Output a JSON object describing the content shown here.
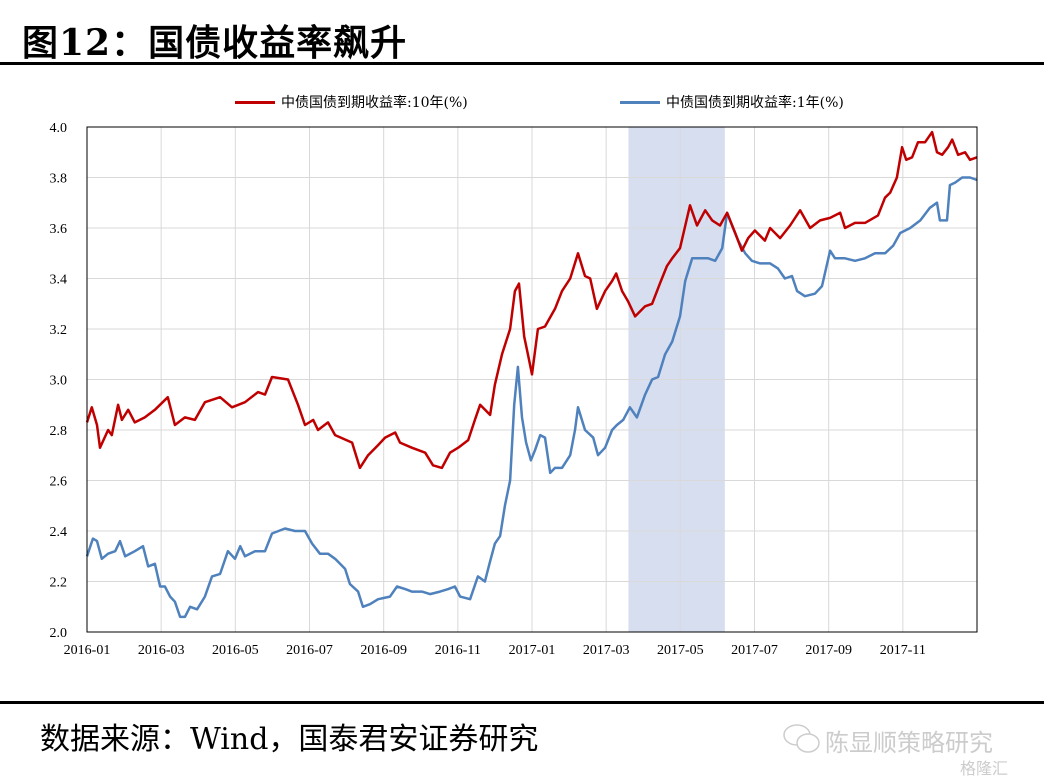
{
  "title": "图12：国债收益率飙升",
  "source": "数据来源：Wind，国泰君安证券研究",
  "watermark": {
    "account": "陈显顺策略研究",
    "platform": "格隆汇"
  },
  "colors": {
    "ten_year": "#C00000",
    "one_year": "#4F81BD",
    "shade": "#D6DEF0"
  },
  "chart_data": {
    "type": "line",
    "title": "图12：国债收益率飙升",
    "xlabel": "",
    "ylabel": "",
    "x_unit": "months since 2016-01",
    "xlim": [
      0,
      24
    ],
    "ylim": [
      2.0,
      4.0
    ],
    "yticks": [
      "2.0",
      "2.2",
      "2.4",
      "2.6",
      "2.8",
      "3.0",
      "3.2",
      "3.4",
      "3.6",
      "3.8",
      "4.0"
    ],
    "xticks": [
      "2016-01",
      "2016-03",
      "2016-05",
      "2016-07",
      "2016-09",
      "2016-11",
      "2017-01",
      "2017-03",
      "2017-05",
      "2017-07",
      "2017-09",
      "2017-11"
    ],
    "grid": true,
    "legend_position": "top",
    "shaded_range": [
      14.6,
      17.2
    ],
    "series": [
      {
        "name": "中债国债到期收益率:10年(%)",
        "points": [
          [
            0,
            2.83
          ],
          [
            0.13,
            2.89
          ],
          [
            0.27,
            2.82
          ],
          [
            0.35,
            2.73
          ],
          [
            0.57,
            2.8
          ],
          [
            0.67,
            2.78
          ],
          [
            0.84,
            2.9
          ],
          [
            0.94,
            2.84
          ],
          [
            1.11,
            2.88
          ],
          [
            1.29,
            2.83
          ],
          [
            1.56,
            2.85
          ],
          [
            1.83,
            2.88
          ],
          [
            2.18,
            2.93
          ],
          [
            2.37,
            2.82
          ],
          [
            2.64,
            2.85
          ],
          [
            2.91,
            2.84
          ],
          [
            3.18,
            2.91
          ],
          [
            3.59,
            2.93
          ],
          [
            3.91,
            2.89
          ],
          [
            4.26,
            2.91
          ],
          [
            4.61,
            2.95
          ],
          [
            4.8,
            2.94
          ],
          [
            4.99,
            3.01
          ],
          [
            5.42,
            3.0
          ],
          [
            5.69,
            2.9
          ],
          [
            5.88,
            2.82
          ],
          [
            6.1,
            2.84
          ],
          [
            6.23,
            2.8
          ],
          [
            6.5,
            2.83
          ],
          [
            6.69,
            2.78
          ],
          [
            7.15,
            2.75
          ],
          [
            7.36,
            2.65
          ],
          [
            7.58,
            2.7
          ],
          [
            7.85,
            2.74
          ],
          [
            8.04,
            2.77
          ],
          [
            8.31,
            2.79
          ],
          [
            8.44,
            2.75
          ],
          [
            8.76,
            2.73
          ],
          [
            9.12,
            2.71
          ],
          [
            9.33,
            2.66
          ],
          [
            9.57,
            2.65
          ],
          [
            9.79,
            2.71
          ],
          [
            10.01,
            2.73
          ],
          [
            10.28,
            2.76
          ],
          [
            10.46,
            2.84
          ],
          [
            10.6,
            2.9
          ],
          [
            10.87,
            2.86
          ],
          [
            11.0,
            2.98
          ],
          [
            11.19,
            3.1
          ],
          [
            11.41,
            3.2
          ],
          [
            11.54,
            3.35
          ],
          [
            11.65,
            3.38
          ],
          [
            11.79,
            3.17
          ],
          [
            11.89,
            3.1
          ],
          [
            12.0,
            3.02
          ],
          [
            12.16,
            3.2
          ],
          [
            12.35,
            3.21
          ],
          [
            12.62,
            3.28
          ],
          [
            12.81,
            3.35
          ],
          [
            13.03,
            3.4
          ],
          [
            13.24,
            3.5
          ],
          [
            13.43,
            3.41
          ],
          [
            13.57,
            3.4
          ],
          [
            13.75,
            3.28
          ],
          [
            13.97,
            3.35
          ],
          [
            14.16,
            3.39
          ],
          [
            14.27,
            3.42
          ],
          [
            14.43,
            3.35
          ],
          [
            14.59,
            3.31
          ],
          [
            14.78,
            3.25
          ],
          [
            15.05,
            3.29
          ],
          [
            15.24,
            3.3
          ],
          [
            15.45,
            3.38
          ],
          [
            15.64,
            3.45
          ],
          [
            15.78,
            3.48
          ],
          [
            15.99,
            3.52
          ],
          [
            16.15,
            3.62
          ],
          [
            16.26,
            3.69
          ],
          [
            16.45,
            3.61
          ],
          [
            16.67,
            3.67
          ],
          [
            16.86,
            3.63
          ],
          [
            17.07,
            3.61
          ],
          [
            17.26,
            3.66
          ],
          [
            17.48,
            3.58
          ],
          [
            17.66,
            3.51
          ],
          [
            17.83,
            3.56
          ],
          [
            18.01,
            3.59
          ],
          [
            18.28,
            3.55
          ],
          [
            18.42,
            3.6
          ],
          [
            18.69,
            3.56
          ],
          [
            18.96,
            3.61
          ],
          [
            19.23,
            3.67
          ],
          [
            19.5,
            3.6
          ],
          [
            19.77,
            3.63
          ],
          [
            20.04,
            3.64
          ],
          [
            20.31,
            3.66
          ],
          [
            20.44,
            3.6
          ],
          [
            20.71,
            3.62
          ],
          [
            20.98,
            3.62
          ],
          [
            21.33,
            3.65
          ],
          [
            21.52,
            3.72
          ],
          [
            21.66,
            3.74
          ],
          [
            21.84,
            3.8
          ],
          [
            21.98,
            3.92
          ],
          [
            22.09,
            3.87
          ],
          [
            22.25,
            3.88
          ],
          [
            22.41,
            3.94
          ],
          [
            22.6,
            3.94
          ],
          [
            22.79,
            3.98
          ],
          [
            22.92,
            3.9
          ],
          [
            23.06,
            3.89
          ],
          [
            23.22,
            3.92
          ],
          [
            23.33,
            3.95
          ],
          [
            23.49,
            3.89
          ],
          [
            23.68,
            3.9
          ],
          [
            23.81,
            3.87
          ],
          [
            24.0,
            3.88
          ]
        ]
      },
      {
        "name": "中债国债到期收益率:1年(%)",
        "points": [
          [
            0,
            2.3
          ],
          [
            0.16,
            2.37
          ],
          [
            0.27,
            2.36
          ],
          [
            0.4,
            2.29
          ],
          [
            0.57,
            2.31
          ],
          [
            0.76,
            2.32
          ],
          [
            0.89,
            2.36
          ],
          [
            1.03,
            2.3
          ],
          [
            1.29,
            2.32
          ],
          [
            1.51,
            2.34
          ],
          [
            1.65,
            2.26
          ],
          [
            1.83,
            2.27
          ],
          [
            1.97,
            2.18
          ],
          [
            2.1,
            2.18
          ],
          [
            2.24,
            2.14
          ],
          [
            2.37,
            2.12
          ],
          [
            2.51,
            2.06
          ],
          [
            2.64,
            2.06
          ],
          [
            2.78,
            2.1
          ],
          [
            2.97,
            2.09
          ],
          [
            3.18,
            2.14
          ],
          [
            3.37,
            2.22
          ],
          [
            3.59,
            2.23
          ],
          [
            3.8,
            2.32
          ],
          [
            3.99,
            2.29
          ],
          [
            4.13,
            2.34
          ],
          [
            4.26,
            2.3
          ],
          [
            4.53,
            2.32
          ],
          [
            4.8,
            2.32
          ],
          [
            4.99,
            2.39
          ],
          [
            5.34,
            2.41
          ],
          [
            5.61,
            2.4
          ],
          [
            5.88,
            2.4
          ],
          [
            6.07,
            2.35
          ],
          [
            6.28,
            2.31
          ],
          [
            6.5,
            2.31
          ],
          [
            6.69,
            2.29
          ],
          [
            6.96,
            2.25
          ],
          [
            7.09,
            2.19
          ],
          [
            7.31,
            2.16
          ],
          [
            7.44,
            2.1
          ],
          [
            7.63,
            2.11
          ],
          [
            7.85,
            2.13
          ],
          [
            8.17,
            2.14
          ],
          [
            8.36,
            2.18
          ],
          [
            8.58,
            2.17
          ],
          [
            8.76,
            2.16
          ],
          [
            9.03,
            2.16
          ],
          [
            9.25,
            2.15
          ],
          [
            9.52,
            2.16
          ],
          [
            9.74,
            2.17
          ],
          [
            9.92,
            2.18
          ],
          [
            10.06,
            2.14
          ],
          [
            10.33,
            2.13
          ],
          [
            10.54,
            2.22
          ],
          [
            10.73,
            2.2
          ],
          [
            10.87,
            2.28
          ],
          [
            11.0,
            2.35
          ],
          [
            11.14,
            2.38
          ],
          [
            11.27,
            2.5
          ],
          [
            11.41,
            2.6
          ],
          [
            11.52,
            2.9
          ],
          [
            11.62,
            3.05
          ],
          [
            11.73,
            2.85
          ],
          [
            11.84,
            2.75
          ],
          [
            11.97,
            2.68
          ],
          [
            12.08,
            2.72
          ],
          [
            12.22,
            2.78
          ],
          [
            12.35,
            2.77
          ],
          [
            12.49,
            2.63
          ],
          [
            12.62,
            2.65
          ],
          [
            12.81,
            2.65
          ],
          [
            13.03,
            2.7
          ],
          [
            13.16,
            2.8
          ],
          [
            13.24,
            2.89
          ],
          [
            13.43,
            2.8
          ],
          [
            13.65,
            2.77
          ],
          [
            13.78,
            2.7
          ],
          [
            13.97,
            2.73
          ],
          [
            14.16,
            2.8
          ],
          [
            14.29,
            2.82
          ],
          [
            14.46,
            2.84
          ],
          [
            14.64,
            2.89
          ],
          [
            14.83,
            2.85
          ],
          [
            15.05,
            2.94
          ],
          [
            15.24,
            3.0
          ],
          [
            15.4,
            3.01
          ],
          [
            15.59,
            3.1
          ],
          [
            15.78,
            3.15
          ],
          [
            15.99,
            3.25
          ],
          [
            16.13,
            3.39
          ],
          [
            16.32,
            3.48
          ],
          [
            16.53,
            3.48
          ],
          [
            16.75,
            3.48
          ],
          [
            16.94,
            3.47
          ],
          [
            17.13,
            3.52
          ],
          [
            17.26,
            3.66
          ],
          [
            17.42,
            3.6
          ],
          [
            17.56,
            3.55
          ],
          [
            17.75,
            3.5
          ],
          [
            17.93,
            3.47
          ],
          [
            18.15,
            3.46
          ],
          [
            18.42,
            3.46
          ],
          [
            18.63,
            3.44
          ],
          [
            18.82,
            3.4
          ],
          [
            19.01,
            3.41
          ],
          [
            19.15,
            3.35
          ],
          [
            19.36,
            3.33
          ],
          [
            19.63,
            3.34
          ],
          [
            19.82,
            3.37
          ],
          [
            20.04,
            3.51
          ],
          [
            20.17,
            3.48
          ],
          [
            20.44,
            3.48
          ],
          [
            20.71,
            3.47
          ],
          [
            20.98,
            3.48
          ],
          [
            21.25,
            3.5
          ],
          [
            21.52,
            3.5
          ],
          [
            21.74,
            3.53
          ],
          [
            21.93,
            3.58
          ],
          [
            22.2,
            3.6
          ],
          [
            22.47,
            3.63
          ],
          [
            22.73,
            3.68
          ],
          [
            22.92,
            3.7
          ],
          [
            23.0,
            3.63
          ],
          [
            23.19,
            3.63
          ],
          [
            23.27,
            3.77
          ],
          [
            23.41,
            3.78
          ],
          [
            23.6,
            3.8
          ],
          [
            23.81,
            3.8
          ],
          [
            24.0,
            3.79
          ]
        ]
      }
    ]
  }
}
